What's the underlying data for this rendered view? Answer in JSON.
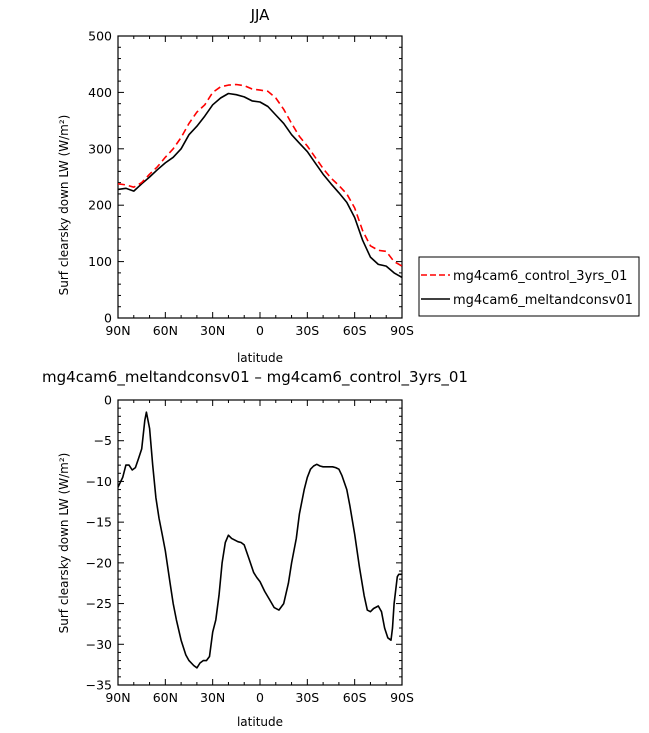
{
  "chart_data": [
    {
      "type": "line",
      "title": "JJA",
      "xlabel": "latitude",
      "ylabel": "Surf clearsky down LW (W/m²)",
      "xlim": [
        90,
        -90
      ],
      "ylim": [
        0,
        500
      ],
      "x_tick_values": [
        90,
        60,
        30,
        0,
        -30,
        -60,
        -90
      ],
      "x_tick_labels": [
        "90N",
        "60N",
        "30N",
        "0",
        "30S",
        "60S",
        "90S"
      ],
      "y_tick_values": [
        0,
        100,
        200,
        300,
        400,
        500
      ],
      "y_tick_labels": [
        "0",
        "100",
        "200",
        "300",
        "400",
        "500"
      ],
      "legend_position": "right",
      "series": [
        {
          "name": "mg4cam6_control_3yrs_01",
          "color": "#ff0000",
          "dash": "dashed",
          "x": [
            90,
            85,
            80,
            75,
            70,
            65,
            60,
            55,
            50,
            45,
            40,
            35,
            30,
            25,
            20,
            15,
            10,
            5,
            0,
            -5,
            -10,
            -15,
            -20,
            -25,
            -30,
            -35,
            -40,
            -45,
            -50,
            -55,
            -60,
            -65,
            -70,
            -75,
            -80,
            -85,
            -90
          ],
          "values": [
            238,
            236,
            232,
            240,
            255,
            268,
            285,
            300,
            320,
            345,
            365,
            378,
            400,
            410,
            413,
            414,
            412,
            406,
            404,
            402,
            390,
            370,
            345,
            322,
            305,
            285,
            265,
            248,
            235,
            220,
            195,
            155,
            128,
            120,
            118,
            100,
            92
          ]
        },
        {
          "name": "mg4cam6_meltandconsv01",
          "color": "#000000",
          "dash": "solid",
          "x": [
            90,
            85,
            80,
            75,
            70,
            65,
            60,
            55,
            50,
            45,
            40,
            35,
            30,
            25,
            20,
            15,
            10,
            5,
            0,
            -5,
            -10,
            -15,
            -20,
            -25,
            -30,
            -35,
            -40,
            -45,
            -50,
            -55,
            -60,
            -65,
            -70,
            -75,
            -80,
            -85,
            -90
          ],
          "values": [
            228,
            230,
            225,
            238,
            250,
            263,
            275,
            285,
            300,
            325,
            340,
            358,
            378,
            390,
            398,
            396,
            392,
            385,
            383,
            375,
            360,
            345,
            325,
            310,
            295,
            275,
            255,
            238,
            222,
            205,
            178,
            138,
            108,
            95,
            92,
            80,
            72
          ]
        }
      ]
    },
    {
      "type": "line",
      "title": "mg4cam6_meltandconsv01 – mg4cam6_control_3yrs_01",
      "xlabel": "latitude",
      "ylabel": "Surf clearsky down LW (W/m²)",
      "xlim": [
        90,
        -90
      ],
      "ylim": [
        -35,
        0
      ],
      "x_tick_values": [
        90,
        60,
        30,
        0,
        -30,
        -60,
        -90
      ],
      "x_tick_labels": [
        "90N",
        "60N",
        "30N",
        "0",
        "30S",
        "60S",
        "90S"
      ],
      "y_tick_values": [
        0,
        -5,
        -10,
        -15,
        -20,
        -25,
        -30,
        -35
      ],
      "y_tick_labels": [
        "0",
        "−5",
        "−10",
        "−15",
        "−20",
        "−25",
        "−30",
        "−35"
      ],
      "series": [
        {
          "color": "#000000",
          "x": [
            90,
            87,
            85,
            83,
            81,
            79,
            77,
            75,
            73,
            72,
            70,
            68,
            66,
            64,
            62,
            60,
            57,
            55,
            53,
            50,
            47,
            45,
            42,
            40,
            38,
            36,
            34,
            32,
            30,
            28,
            26,
            24,
            22,
            20,
            18,
            16,
            14,
            12,
            10,
            7,
            4,
            2,
            0,
            -3,
            -6,
            -9,
            -12,
            -15,
            -18,
            -20,
            -23,
            -25,
            -28,
            -30,
            -32,
            -34,
            -36,
            -38,
            -40,
            -42,
            -44,
            -46,
            -48,
            -50,
            -52,
            -55,
            -57,
            -60,
            -63,
            -66,
            -68,
            -70,
            -72,
            -75,
            -77,
            -79,
            -81,
            -83,
            -84,
            -85,
            -87,
            -88,
            -90
          ],
          "values": [
            -10.7,
            -9.5,
            -8.0,
            -8.0,
            -8.6,
            -8.3,
            -7.2,
            -6.0,
            -2.5,
            -1.5,
            -3.5,
            -8.0,
            -12.0,
            -14.5,
            -16.5,
            -18.5,
            -22.5,
            -25.0,
            -27.0,
            -29.5,
            -31.3,
            -32.0,
            -32.6,
            -32.9,
            -32.3,
            -32.0,
            -32.0,
            -31.5,
            -28.5,
            -27.0,
            -24.0,
            -20.0,
            -17.5,
            -16.6,
            -17.0,
            -17.2,
            -17.4,
            -17.5,
            -17.8,
            -19.5,
            -21.2,
            -21.8,
            -22.3,
            -23.5,
            -24.5,
            -25.5,
            -25.8,
            -25.0,
            -22.5,
            -20.0,
            -17.0,
            -14.0,
            -11.0,
            -9.5,
            -8.5,
            -8.1,
            -7.9,
            -8.1,
            -8.2,
            -8.2,
            -8.2,
            -8.2,
            -8.3,
            -8.5,
            -9.3,
            -11.0,
            -13.0,
            -16.5,
            -20.5,
            -24.0,
            -25.8,
            -26.0,
            -25.6,
            -25.3,
            -26.0,
            -28.0,
            -29.2,
            -29.5,
            -28.0,
            -25.0,
            -21.7,
            -21.4,
            -21.4
          ]
        }
      ]
    }
  ]
}
